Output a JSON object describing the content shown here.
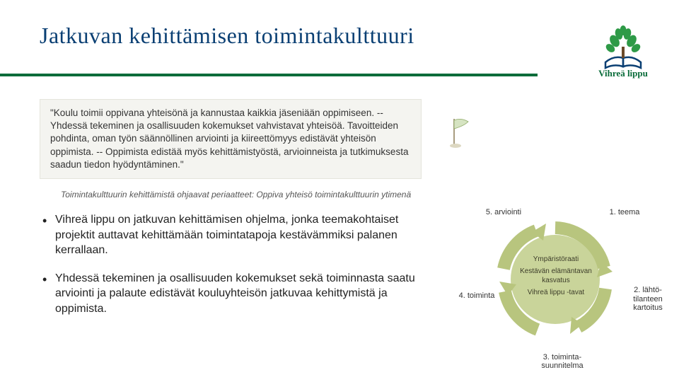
{
  "title": "Jatkuvan kehittämisen toimintakulttuuri",
  "logo": {
    "text": "Vihreä lippu",
    "tree_color": "#2e9a47",
    "book_color": "#0a3f73",
    "leaf_color": "#2e9a47"
  },
  "rule_color": "#0a6c3a",
  "quote": "\"Koulu toimii oppivana yhteisönä ja kannustaa kaikkia jäseniään oppimiseen. -- Yhdessä tekeminen ja osallisuuden kokemukset vahvistavat yhteisöä. Tavoitteiden pohdinta, oman työn säännöllinen arviointi ja kiireettömyys edistävät yhteisön oppimista. -- Oppimista edistää myös kehittämistyöstä, arvioinneista ja tutkimuksesta saadun tiedon hyödyntäminen.\"",
  "quote_bg": "#f4f4f0",
  "caption": "Toimintakulttuurin kehittämistä ohjaavat periaatteet: Oppiva yhteisö toimintakulttuurin ytimenä",
  "bullets": [
    {
      "prefix": "Vihreä lippu on ",
      "bold1": "jatkuvan kehittämisen ohjelma",
      "rest": ", jonka teemakohtaiset projektit auttavat kehittämään toimintatapoja kestävämmiksi palanen kerrallaan."
    },
    {
      "bold1": "Yhdessä tekeminen ja osallisuuden kokemukset",
      "mid": " sekä ",
      "bold2": "toiminnasta saatu arviointi ja palaute",
      "rest": " edistävät kouluyhteisön jatkuvaa kehittymistä ja oppimista."
    }
  ],
  "diagram": {
    "circle_fill": "#c9d49a",
    "arrow_stroke": "#b8c57e",
    "center": {
      "top": "Ympäristöraati",
      "mid": "Kestävän elämäntavan kasvatus",
      "bottom": "Vihreä lippu -tavat"
    },
    "steps": {
      "s1": "1. teema",
      "s2": "2. lähtö-\ntilanteen\nkartoitus",
      "s3": "3. toiminta-\nsuunnitelma",
      "s4": "4. toiminta",
      "s5": "5. arviointi"
    }
  }
}
